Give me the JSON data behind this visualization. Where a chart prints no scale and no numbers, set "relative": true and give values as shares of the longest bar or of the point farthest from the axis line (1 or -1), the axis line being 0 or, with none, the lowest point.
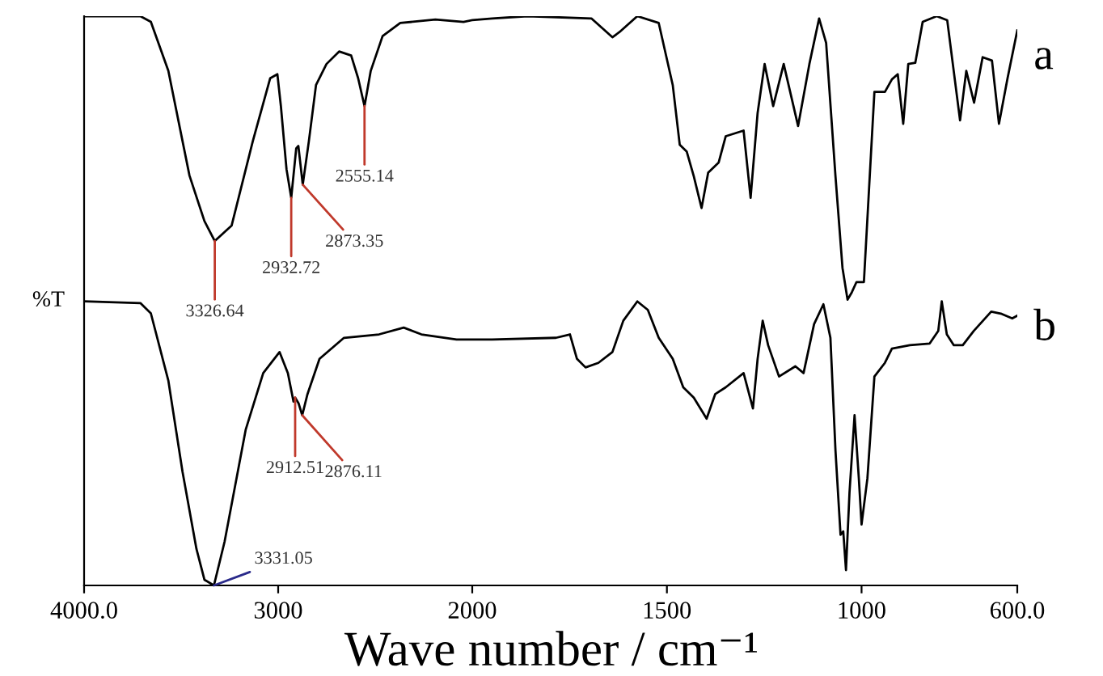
{
  "chart_data": [
    {
      "type": "line",
      "relative": true,
      "xlabel": "Wave number / cm⁻¹",
      "ylabel": "%T",
      "grid": false,
      "legend": false,
      "xlim": [
        4000,
        2000
      ],
      "xticks": [
        {
          "value": 4000,
          "label": "4000.0"
        },
        3000,
        2000
      ],
      "tick_labels": "x",
      "series": [
        {
          "color": "#000000",
          "x": [
            4000,
            3710,
            3656,
            3566,
            3457,
            3380,
            3326.64,
            3240,
            3131,
            3041,
            3004,
            2986,
            2957,
            2932.72,
            2907,
            2896,
            2873.35,
            2842,
            2805,
            2751,
            2686,
            2624,
            2588,
            2555.14,
            2523,
            2462,
            2371,
            2190,
            2045,
            2000
          ],
          "values": [
            1.0,
            1.0,
            0.99,
            0.904,
            0.72,
            0.64,
            0.605,
            0.632,
            0.78,
            0.891,
            0.898,
            0.842,
            0.731,
            0.681,
            0.768,
            0.772,
            0.704,
            0.78,
            0.879,
            0.916,
            0.938,
            0.931,
            0.891,
            0.842,
            0.904,
            0.965,
            0.988,
            0.994,
            0.99,
            0.993
          ]
        },
        {
          "color": "#000000",
          "x": [
            4000,
            3710,
            3656,
            3566,
            3493,
            3421,
            3380,
            3331.05,
            3276,
            3167,
            3077,
            2993,
            2950,
            2921,
            2912.51,
            2895,
            2876.11,
            2849,
            2787,
            2661,
            2480,
            2353,
            2262,
            2081,
            2000
          ],
          "values": [
            0.499,
            0.496,
            0.478,
            0.36,
            0.2,
            0.064,
            0.01,
            0.0,
            0.077,
            0.274,
            0.373,
            0.41,
            0.373,
            0.323,
            0.33,
            0.32,
            0.299,
            0.336,
            0.398,
            0.435,
            0.441,
            0.453,
            0.441,
            0.432,
            0.432
          ]
        }
      ],
      "annotations": [
        {
          "text": "3326.64",
          "x": 3326.64,
          "y": 0.605
        },
        {
          "text": "2932.72",
          "x": 2932.72,
          "y": 0.681
        },
        {
          "text": "2873.35",
          "x": 2873.35,
          "y": 0.704
        },
        {
          "text": "2555.14",
          "x": 2555.14,
          "y": 0.842
        },
        {
          "text": "2912.51",
          "x": 2912.51,
          "y": 0.33
        },
        {
          "text": "2876.11",
          "x": 2876.11,
          "y": 0.299
        },
        {
          "text": "3331.05",
          "x": 3331.05,
          "y": 0.0
        }
      ]
    },
    {
      "type": "line",
      "relative": true,
      "xlim": [
        2000,
        600
      ],
      "xticks": [
        1500,
        1000,
        {
          "value": 600,
          "label": "600.0"
        }
      ],
      "grid": false,
      "legend": false,
      "tick_labels": "x",
      "series": [
        {
          "name": "a",
          "color": "#000000",
          "x": [
            2000,
            1949,
            1858,
            1694,
            1640,
            1622,
            1576,
            1521,
            1485,
            1467,
            1449,
            1431,
            1411,
            1394,
            1367,
            1349,
            1303,
            1285,
            1267,
            1249,
            1227,
            1200,
            1163,
            1134,
            1109,
            1091,
            1067,
            1049,
            1036,
            1025,
            1013,
            994,
            967,
            940,
            922,
            907,
            893,
            880,
            862,
            843,
            807,
            780,
            747,
            731,
            711,
            689,
            665,
            647,
            625,
            600
          ],
          "values": [
            0.993,
            0.996,
            1.0,
            0.996,
            0.963,
            0.972,
            1.0,
            0.988,
            0.879,
            0.774,
            0.762,
            0.719,
            0.663,
            0.725,
            0.743,
            0.789,
            0.799,
            0.681,
            0.83,
            0.916,
            0.842,
            0.916,
            0.807,
            0.916,
            0.996,
            0.953,
            0.719,
            0.558,
            0.502,
            0.515,
            0.533,
            0.533,
            0.867,
            0.867,
            0.889,
            0.898,
            0.811,
            0.916,
            0.918,
            0.99,
            1.0,
            0.993,
            0.817,
            0.904,
            0.848,
            0.928,
            0.922,
            0.811,
            0.891,
            0.975
          ]
        },
        {
          "name": "b",
          "color": "#000000",
          "x": [
            2000,
            1949,
            1785,
            1749,
            1731,
            1709,
            1676,
            1640,
            1612,
            1576,
            1549,
            1521,
            1485,
            1458,
            1431,
            1398,
            1376,
            1349,
            1303,
            1279,
            1267,
            1254,
            1240,
            1212,
            1170,
            1149,
            1122,
            1098,
            1080,
            1067,
            1054,
            1047,
            1040,
            1031,
            1018,
            1007,
            1000,
            985,
            967,
            940,
            922,
            876,
            825,
            803,
            794,
            781,
            763,
            740,
            712,
            667,
            640,
            613,
            600
          ],
          "values": [
            0.432,
            0.432,
            0.435,
            0.441,
            0.398,
            0.383,
            0.391,
            0.41,
            0.465,
            0.499,
            0.484,
            0.435,
            0.398,
            0.348,
            0.33,
            0.293,
            0.336,
            0.348,
            0.373,
            0.311,
            0.398,
            0.465,
            0.422,
            0.367,
            0.385,
            0.373,
            0.459,
            0.494,
            0.435,
            0.237,
            0.089,
            0.095,
            0.027,
            0.163,
            0.299,
            0.188,
            0.107,
            0.188,
            0.367,
            0.391,
            0.416,
            0.422,
            0.425,
            0.447,
            0.499,
            0.441,
            0.422,
            0.422,
            0.447,
            0.481,
            0.477,
            0.469,
            0.474
          ]
        }
      ]
    }
  ]
}
